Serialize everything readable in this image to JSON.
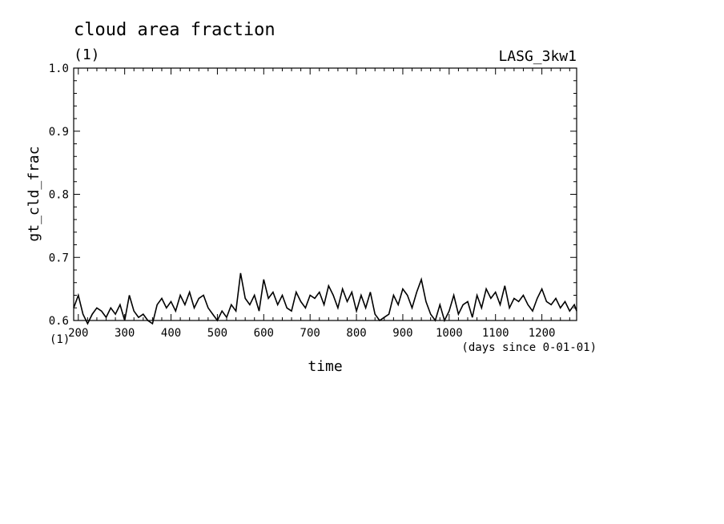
{
  "chart_data": {
    "type": "line",
    "title": "cloud area fraction",
    "units": "(1)",
    "experiment": "LASG_3kw1",
    "xlabel": "time",
    "x_units": "(days since 0-01-01)",
    "ylabel": "gt_cld_frac",
    "y_units": "(1)",
    "xlim": [
      190,
      1275
    ],
    "ylim": [
      0.6,
      1.0
    ],
    "xticks": [
      200,
      300,
      400,
      500,
      600,
      700,
      800,
      900,
      1000,
      1100,
      1200
    ],
    "yticks": [
      0.6,
      0.7,
      0.8,
      0.9,
      1.0
    ],
    "ytick_labels": [
      "0.6",
      "0.7",
      "0.8",
      "0.9",
      "1.0"
    ],
    "grid": false,
    "series": [
      {
        "x": [
          190,
          200,
          210,
          220,
          230,
          240,
          250,
          260,
          270,
          280,
          290,
          300,
          310,
          320,
          330,
          340,
          350,
          360,
          370,
          380,
          390,
          400,
          410,
          420,
          430,
          440,
          450,
          460,
          470,
          480,
          490,
          500,
          510,
          520,
          530,
          540,
          550,
          560,
          570,
          580,
          590,
          600,
          610,
          620,
          630,
          640,
          650,
          660,
          670,
          680,
          690,
          700,
          710,
          720,
          730,
          740,
          750,
          760,
          770,
          780,
          790,
          800,
          810,
          820,
          830,
          840,
          850,
          860,
          870,
          880,
          890,
          900,
          910,
          920,
          930,
          940,
          950,
          960,
          970,
          980,
          990,
          1000,
          1010,
          1020,
          1030,
          1040,
          1050,
          1060,
          1070,
          1080,
          1090,
          1100,
          1110,
          1120,
          1130,
          1140,
          1150,
          1160,
          1170,
          1180,
          1190,
          1200,
          1210,
          1220,
          1230,
          1240,
          1250,
          1260,
          1270,
          1275
        ],
        "y": [
          0.62,
          0.64,
          0.61,
          0.595,
          0.61,
          0.62,
          0.615,
          0.605,
          0.62,
          0.61,
          0.625,
          0.6,
          0.64,
          0.615,
          0.605,
          0.61,
          0.6,
          0.595,
          0.625,
          0.635,
          0.62,
          0.63,
          0.615,
          0.64,
          0.625,
          0.645,
          0.62,
          0.635,
          0.64,
          0.62,
          0.61,
          0.6,
          0.615,
          0.605,
          0.625,
          0.615,
          0.675,
          0.635,
          0.625,
          0.64,
          0.615,
          0.665,
          0.635,
          0.645,
          0.625,
          0.64,
          0.62,
          0.615,
          0.645,
          0.63,
          0.62,
          0.64,
          0.635,
          0.645,
          0.625,
          0.655,
          0.64,
          0.62,
          0.65,
          0.63,
          0.645,
          0.615,
          0.64,
          0.62,
          0.645,
          0.61,
          0.6,
          0.605,
          0.61,
          0.64,
          0.625,
          0.65,
          0.64,
          0.62,
          0.645,
          0.665,
          0.63,
          0.61,
          0.6,
          0.625,
          0.6,
          0.615,
          0.64,
          0.61,
          0.625,
          0.63,
          0.605,
          0.64,
          0.62,
          0.65,
          0.635,
          0.645,
          0.625,
          0.655,
          0.62,
          0.635,
          0.63,
          0.64,
          0.625,
          0.615,
          0.635,
          0.65,
          0.63,
          0.625,
          0.635,
          0.62,
          0.63,
          0.615,
          0.625,
          0.615
        ]
      }
    ]
  }
}
